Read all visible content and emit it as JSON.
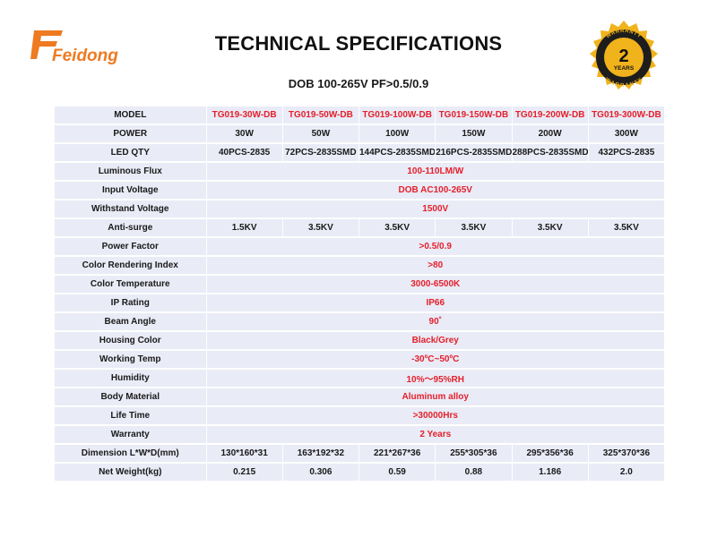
{
  "brand": {
    "name": "Feidong"
  },
  "header": {
    "title": "TECHNICAL SPECIFICATIONS",
    "subtitle": "DOB 100-265V PF>0.5/0.9"
  },
  "badge": {
    "top_text": "WARRANTY",
    "number": "2",
    "unit": "YEARS",
    "bottom_text": "WARRANTY"
  },
  "colors": {
    "accent_red": "#e41f2b",
    "cell_bg": "#e9ebf6",
    "logo_orange": "#ee7a21",
    "badge_gold": "#f1b31c"
  },
  "table": {
    "models_label": "MODEL",
    "models": [
      "TG019-30W-DB",
      "TG019-50W-DB",
      "TG019-100W-DB",
      "TG019-150W-DB",
      "TG019-200W-DB",
      "TG019-300W-DB"
    ],
    "power_label": "POWER",
    "power": [
      "30W",
      "50W",
      "100W",
      "150W",
      "200W",
      "300W"
    ],
    "led_qty_label": "LED QTY",
    "led_qty": [
      "40PCS-2835",
      "72PCS-2835SMD",
      "144PCS-2835SMD",
      "216PCS-2835SMD",
      "288PCS-2835SMD",
      "432PCS-2835"
    ],
    "luminous_flux_label": "Luminous Flux",
    "luminous_flux": "100-110LM/W",
    "input_voltage_label": "Input Voltage",
    "input_voltage": "DOB AC100-265V",
    "withstand_voltage_label": "Withstand Voltage",
    "withstand_voltage": "1500V",
    "anti_surge_label": "Anti-surge",
    "anti_surge": [
      "1.5KV",
      "3.5KV",
      "3.5KV",
      "3.5KV",
      "3.5KV",
      "3.5KV"
    ],
    "power_factor_label": "Power Factor",
    "power_factor": ">0.5/0.9",
    "cri_label": "Color Rendering Index",
    "cri": ">80",
    "color_temp_label": "Color Temperature",
    "color_temp": "3000-6500K",
    "ip_rating_label": "IP Rating",
    "ip_rating": "IP66",
    "beam_angle_label": "Beam Angle",
    "beam_angle": "90˚",
    "housing_color_label": "Housing Color",
    "housing_color": "Black/Grey",
    "working_temp_label": "Working Temp",
    "working_temp": "-30ºC~50ºC",
    "humidity_label": "Humidity",
    "humidity": "10%～95%RH",
    "body_material_label": "Body Material",
    "body_material": "Aluminum alloy",
    "life_time_label": "Life Time",
    "life_time": ">30000Hrs",
    "warranty_label": "Warranty",
    "warranty": "2 Years",
    "dimension_label": "Dimension L*W*D(mm)",
    "dimension": [
      "130*160*31",
      "163*192*32",
      "221*267*36",
      "255*305*36",
      "295*356*36",
      "325*370*36"
    ],
    "net_weight_label": "Net Weight(kg)",
    "net_weight": [
      "0.215",
      "0.306",
      "0.59",
      "0.88",
      "1.186",
      "2.0"
    ]
  }
}
